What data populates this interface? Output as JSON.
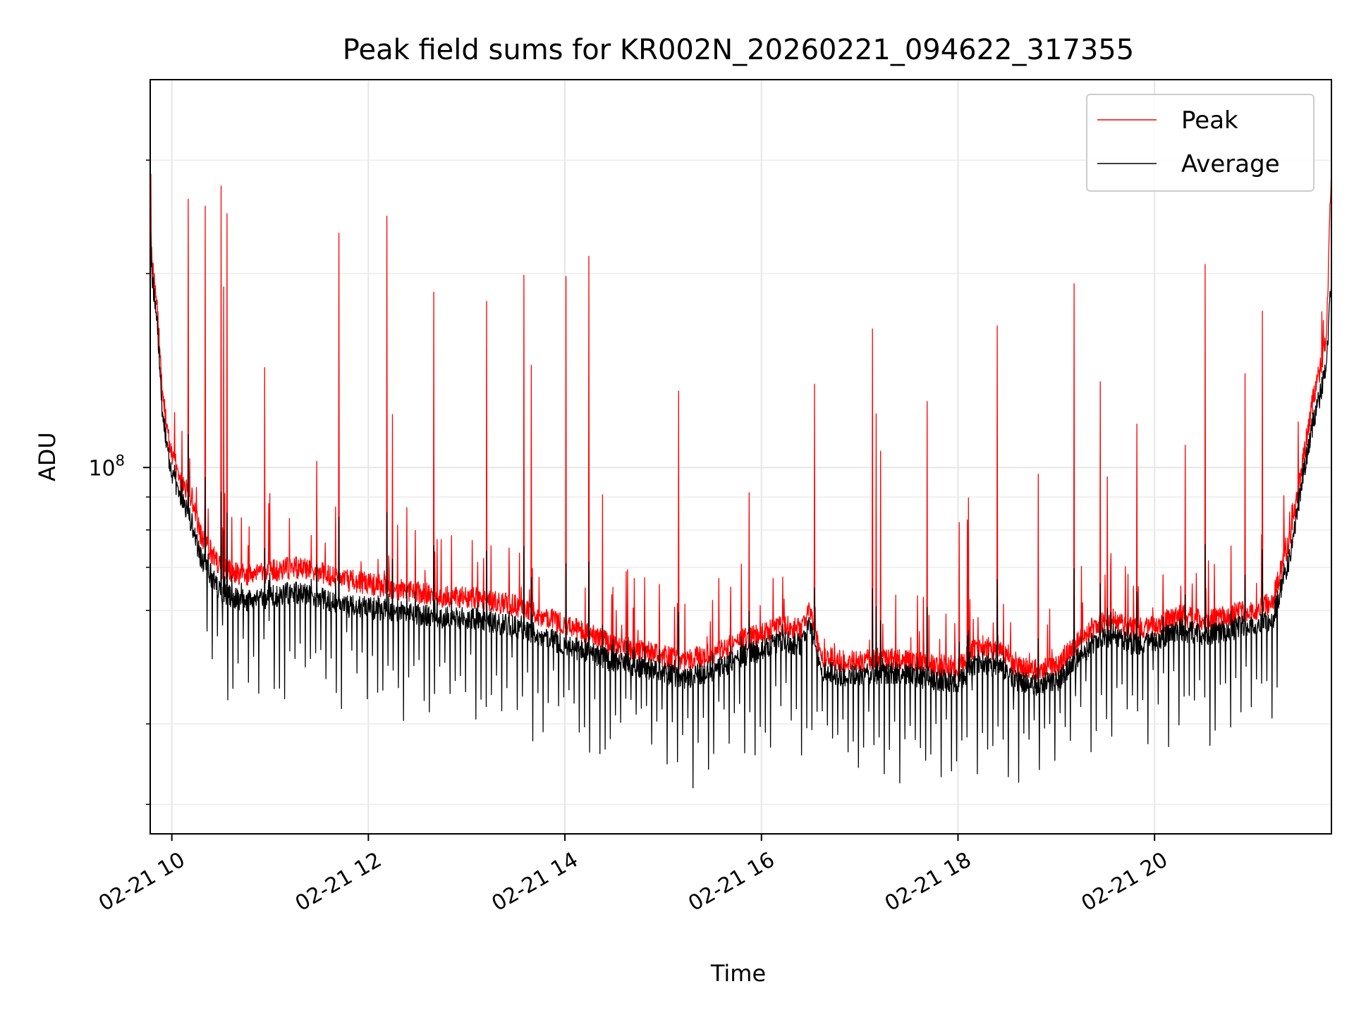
{
  "chart_data": {
    "type": "line",
    "title": "Peak field sums for KR002N_20260221_094622_317355",
    "xlabel": "Time",
    "ylabel": "ADU",
    "xscale": "time",
    "yscale": "log",
    "xlim_hours": [
      9.78,
      21.8
    ],
    "ylim": [
      27000000,
      400000000
    ],
    "x_ticks": [
      {
        "hour": 10,
        "label": "02-21 10"
      },
      {
        "hour": 12,
        "label": "02-21 12"
      },
      {
        "hour": 14,
        "label": "02-21 14"
      },
      {
        "hour": 16,
        "label": "02-21 16"
      },
      {
        "hour": 18,
        "label": "02-21 18"
      },
      {
        "hour": 20,
        "label": "02-21 20"
      }
    ],
    "y_major_ticks": [
      {
        "value": 100000000,
        "base": "10",
        "exp": "8"
      }
    ],
    "y_minor_ticks": [
      30000000,
      40000000,
      60000000,
      70000000,
      80000000,
      90000000,
      200000000,
      300000000
    ],
    "grid": true,
    "legend_position": "top-right",
    "series": [
      {
        "name": "Peak",
        "color": "#ff0000",
        "x_hours": [
          9.78,
          9.8,
          9.85,
          9.9,
          9.95,
          10.0,
          10.1,
          10.2,
          10.3,
          10.5,
          10.75,
          11.0,
          11.25,
          11.5,
          11.75,
          12.0,
          12.25,
          12.5,
          12.75,
          13.0,
          13.25,
          13.5,
          13.75,
          14.0,
          14.25,
          14.5,
          14.75,
          15.0,
          15.2,
          15.4,
          15.6,
          15.8,
          16.0,
          16.2,
          16.4,
          16.5,
          16.6,
          16.8,
          17.0,
          17.25,
          17.5,
          17.75,
          18.0,
          18.2,
          18.4,
          18.6,
          18.8,
          19.0,
          19.2,
          19.4,
          19.6,
          19.8,
          20.0,
          20.25,
          20.5,
          20.75,
          21.0,
          21.2,
          21.4,
          21.5,
          21.6,
          21.7,
          21.75,
          21.8
        ],
        "y": [
          250000000,
          205000000,
          180000000,
          135000000,
          115000000,
          105000000,
          95000000,
          90000000,
          78000000,
          70000000,
          68000000,
          69000000,
          70000000,
          69000000,
          67000000,
          66000000,
          65000000,
          64000000,
          63000000,
          63000000,
          62000000,
          61000000,
          59000000,
          57000000,
          55000000,
          53000000,
          52000000,
          51000000,
          50000000,
          51000000,
          52000000,
          54000000,
          55000000,
          57000000,
          56000000,
          60000000,
          51000000,
          50000000,
          50000000,
          50500000,
          50000000,
          49500000,
          49000000,
          53000000,
          52000000,
          49000000,
          48500000,
          49000000,
          53000000,
          57000000,
          58000000,
          56000000,
          57000000,
          59000000,
          58000000,
          59000000,
          60000000,
          62000000,
          80000000,
          100000000,
          125000000,
          145000000,
          160000000,
          300000000
        ]
      },
      {
        "name": "Average",
        "color": "#000000",
        "x_hours": [
          9.78,
          9.8,
          9.85,
          9.9,
          9.95,
          10.0,
          10.1,
          10.2,
          10.3,
          10.5,
          10.75,
          11.0,
          11.25,
          11.5,
          11.75,
          12.0,
          12.25,
          12.5,
          12.75,
          13.0,
          13.25,
          13.5,
          13.75,
          14.0,
          14.25,
          14.5,
          14.75,
          15.0,
          15.2,
          15.4,
          15.6,
          15.8,
          16.0,
          16.2,
          16.4,
          16.5,
          16.6,
          16.8,
          17.0,
          17.25,
          17.5,
          17.75,
          18.0,
          18.2,
          18.4,
          18.6,
          18.8,
          19.0,
          19.2,
          19.4,
          19.6,
          19.8,
          20.0,
          20.25,
          20.5,
          20.75,
          21.0,
          21.2,
          21.4,
          21.5,
          21.6,
          21.7,
          21.75,
          21.8
        ],
        "y": [
          235000000,
          195000000,
          170000000,
          125000000,
          108000000,
          98000000,
          90000000,
          82000000,
          72000000,
          64000000,
          62000000,
          63000000,
          64000000,
          63000000,
          61000000,
          60500000,
          60000000,
          59000000,
          58500000,
          58500000,
          57500000,
          56500000,
          55000000,
          53000000,
          51500000,
          50000000,
          49000000,
          48000000,
          47000000,
          48000000,
          49000000,
          51000000,
          52000000,
          54000000,
          53000000,
          57000000,
          48500000,
          47500000,
          47500000,
          48000000,
          47500000,
          47000000,
          46500000,
          50000000,
          49000000,
          46500000,
          46000000,
          46500000,
          50000000,
          54000000,
          55000000,
          53000000,
          54000000,
          56000000,
          55000000,
          56000000,
          57000000,
          58000000,
          75000000,
          95000000,
          115000000,
          132000000,
          145000000,
          200000000
        ]
      }
    ]
  }
}
